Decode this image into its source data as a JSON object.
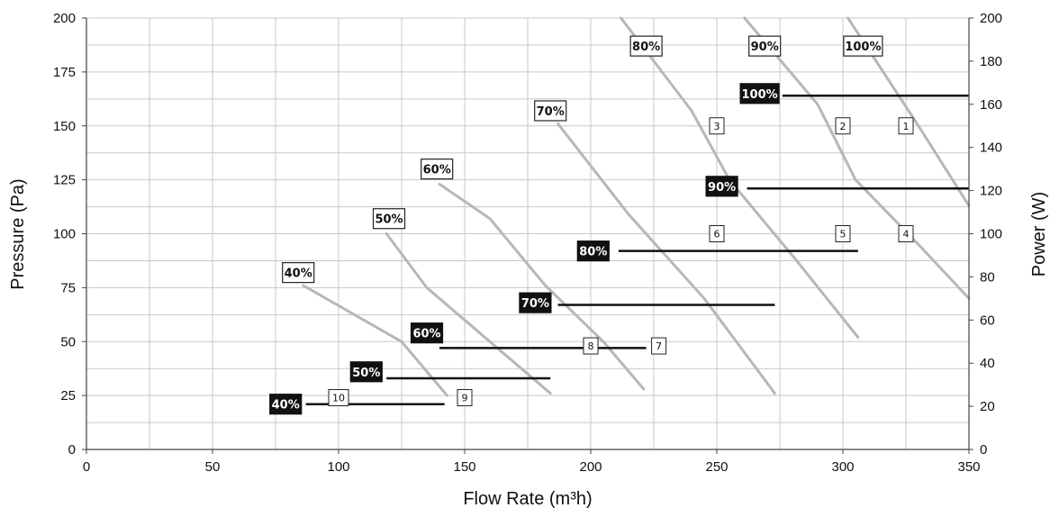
{
  "chart_data": {
    "type": "line",
    "xlabel": "Flow Rate (m³h)",
    "ylabel": "Pressure (Pa)",
    "y2label": "Power (W)",
    "xlim": [
      0,
      350
    ],
    "ylim": [
      0,
      200
    ],
    "y2lim": [
      0,
      200
    ],
    "grid": true,
    "x_ticks": [
      "0",
      "50",
      "100",
      "150",
      "200",
      "250",
      "300",
      "350"
    ],
    "y_ticks": [
      "0",
      "25",
      "50",
      "75",
      "100",
      "125",
      "150",
      "175",
      "200"
    ],
    "y2_ticks": [
      "0",
      "20",
      "40",
      "60",
      "80",
      "100",
      "120",
      "140",
      "160",
      "180",
      "200"
    ],
    "pressure_series": [
      {
        "label": "40%",
        "label_at": [
          84,
          82
        ],
        "points": [
          [
            86,
            76
          ],
          [
            125,
            50
          ],
          [
            143,
            25
          ]
        ]
      },
      {
        "label": "50%",
        "label_at": [
          120,
          107
        ],
        "points": [
          [
            119,
            100
          ],
          [
            135,
            75
          ],
          [
            160,
            50
          ],
          [
            184,
            26
          ]
        ]
      },
      {
        "label": "60%",
        "label_at": [
          139,
          130
        ],
        "points": [
          [
            140,
            123
          ],
          [
            160,
            107
          ],
          [
            182,
            76
          ],
          [
            205,
            50
          ],
          [
            221,
            28
          ]
        ]
      },
      {
        "label": "70%",
        "label_at": [
          184,
          157
        ],
        "points": [
          [
            187,
            151
          ],
          [
            215,
            109
          ],
          [
            245,
            70
          ],
          [
            273,
            26
          ]
        ]
      },
      {
        "label": "80%",
        "label_at": [
          222,
          187
        ],
        "points": [
          [
            212,
            200
          ],
          [
            240,
            157
          ],
          [
            255,
            125
          ],
          [
            282,
            87
          ],
          [
            306,
            52
          ]
        ]
      },
      {
        "label": "90%",
        "label_at": [
          269,
          187
        ],
        "points": [
          [
            261,
            200
          ],
          [
            290,
            160
          ],
          [
            305,
            125
          ],
          [
            330,
            95
          ],
          [
            350,
            70
          ]
        ]
      },
      {
        "label": "100%",
        "label_at": [
          308,
          187
        ],
        "points": [
          [
            302,
            200
          ],
          [
            330,
            150
          ],
          [
            350,
            113
          ]
        ]
      }
    ],
    "power_series": [
      {
        "label": "40%",
        "label_at": [
          79,
          21
        ],
        "x": [
          87,
          142
        ],
        "power": 21
      },
      {
        "label": "50%",
        "label_at": [
          111,
          36
        ],
        "x": [
          119,
          184
        ],
        "power": 33
      },
      {
        "label": "60%",
        "label_at": [
          135,
          54
        ],
        "x": [
          140,
          222
        ],
        "power": 47
      },
      {
        "label": "70%",
        "label_at": [
          178,
          68
        ],
        "x": [
          187,
          273
        ],
        "power": 67
      },
      {
        "label": "80%",
        "label_at": [
          201,
          92
        ],
        "x": [
          211,
          306
        ],
        "power": 92
      },
      {
        "label": "90%",
        "label_at": [
          252,
          122
        ],
        "x": [
          262,
          350
        ],
        "power": 121
      },
      {
        "label": "100%",
        "label_at": [
          267,
          165
        ],
        "x": [
          276,
          350
        ],
        "power": 164
      }
    ],
    "markers": [
      {
        "label": "1",
        "x": 325,
        "y": 150
      },
      {
        "label": "2",
        "x": 300,
        "y": 150
      },
      {
        "label": "3",
        "x": 250,
        "y": 150
      },
      {
        "label": "4",
        "x": 325,
        "y": 100
      },
      {
        "label": "5",
        "x": 300,
        "y": 100
      },
      {
        "label": "6",
        "x": 250,
        "y": 100
      },
      {
        "label": "7",
        "x": 227,
        "y": 48
      },
      {
        "label": "8",
        "x": 200,
        "y": 48
      },
      {
        "label": "9",
        "x": 150,
        "y": 24
      },
      {
        "label": "10",
        "x": 100,
        "y": 24
      }
    ],
    "colors": {
      "pressure_line": "#b7b7b7",
      "power_line": "#111111",
      "grid": "#c8c8c8",
      "axis": "#444444"
    }
  }
}
